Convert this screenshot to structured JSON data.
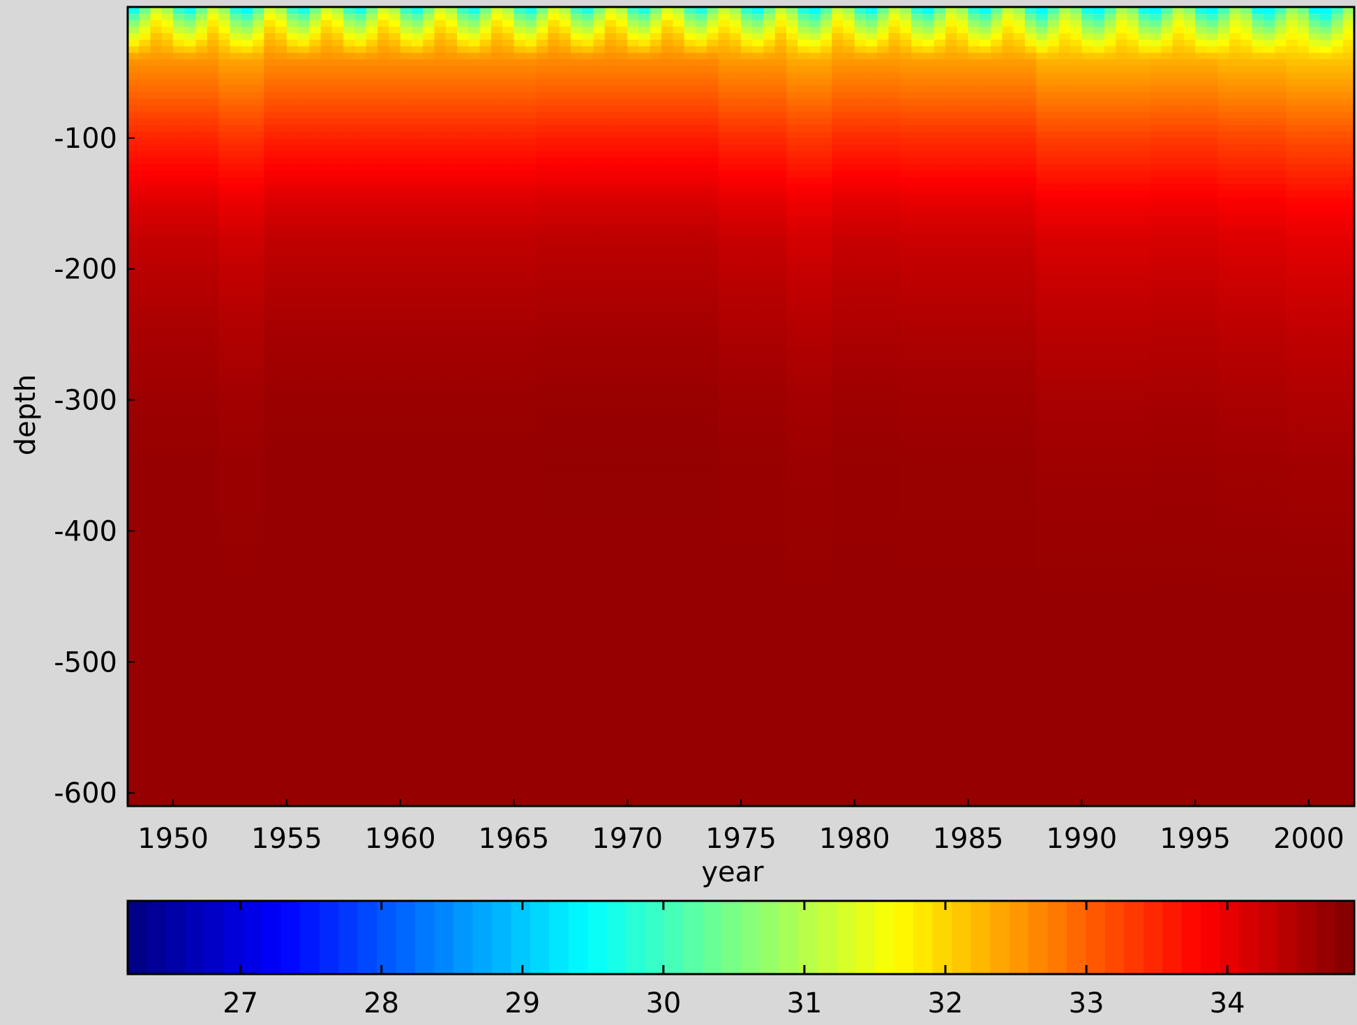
{
  "chart_data": {
    "type": "heatmap",
    "title": "",
    "xlabel": "year",
    "ylabel": "depth",
    "xlim": [
      1948,
      2002
    ],
    "ylim": [
      -610,
      0
    ],
    "xticks": [
      1950,
      1955,
      1960,
      1965,
      1970,
      1975,
      1980,
      1985,
      1990,
      1995,
      2000
    ],
    "yticks": [
      -100,
      -200,
      -300,
      -400,
      -500,
      -600
    ],
    "colorbar": {
      "orientation": "horizontal",
      "placement": "bottom",
      "colormap": "jet",
      "clim": [
        26.2,
        34.9
      ],
      "ticks": [
        27,
        28,
        29,
        30,
        31,
        32,
        33,
        34
      ]
    },
    "depth_profile": {
      "depths": [
        0,
        -10,
        -25,
        -50,
        -75,
        -100,
        -125,
        -150,
        -175,
        -200,
        -250,
        -300,
        -350,
        -400,
        -500,
        -610
      ],
      "values": [
        31.3,
        31.9,
        32.3,
        32.7,
        33.1,
        33.5,
        33.8,
        34.1,
        34.3,
        34.4,
        34.55,
        34.65,
        34.7,
        34.7,
        34.7,
        34.7
      ]
    },
    "period_offsets": {
      "periods": [
        {
          "from": 1948,
          "to": 1952
        },
        {
          "from": 1952,
          "to": 1954
        },
        {
          "from": 1954,
          "to": 1966
        },
        {
          "from": 1966,
          "to": 1974
        },
        {
          "from": 1974,
          "to": 1977
        },
        {
          "from": 1977,
          "to": 1979
        },
        {
          "from": 1979,
          "to": 1982
        },
        {
          "from": 1982,
          "to": 1988
        },
        {
          "from": 1988,
          "to": 1993
        },
        {
          "from": 1993,
          "to": 1996
        },
        {
          "from": 1996,
          "to": 1999
        },
        {
          "from": 1999,
          "to": 2002
        }
      ],
      "offsets": [
        0.0,
        -0.15,
        0.05,
        0.1,
        -0.05,
        -0.2,
        -0.05,
        -0.1,
        -0.3,
        -0.25,
        -0.35,
        -0.45
      ]
    },
    "surface_minimum": 29.5
  }
}
